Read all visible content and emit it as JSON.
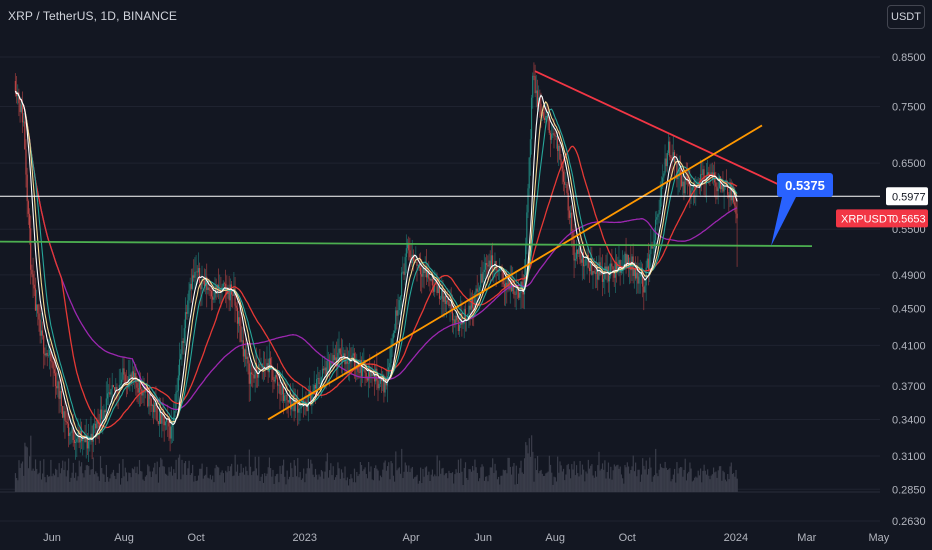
{
  "header": {
    "title": "XRP / TetherUS, 1D, BINANCE",
    "currency_button": "USDT"
  },
  "colors": {
    "background": "#131722",
    "axis_text": "#b2b5be",
    "trendline_resistance": "#f23645",
    "trendline_support": "#ff9800",
    "horizontal_support": "#4caf50",
    "horizontal_level": "#ffffff",
    "ma_slow": "#9c27b0",
    "ma_mid": "#e53935",
    "ma_fast": "#26a69a",
    "ma_fastest": "#ffffff",
    "candle_up": "#26a69a",
    "candle_down": "#ef5350",
    "volume": "#3a3d4a",
    "price_badge": "#f23645",
    "callout": "#2962ff"
  },
  "chart_data": {
    "type": "candlestick",
    "symbol": "XRPUSDT",
    "timeframe": "1D",
    "x_ticks": [
      "Jun",
      "Aug",
      "Oct",
      "2023",
      "Apr",
      "Jun",
      "Aug",
      "Oct",
      "2024",
      "Mar",
      "May"
    ],
    "y_ticks": [
      0.85,
      0.75,
      0.65,
      0.55,
      0.49,
      0.45,
      0.41,
      0.37,
      0.34,
      0.31,
      0.285,
      0.263
    ],
    "y_tick_labels": [
      "0.8500",
      "0.7500",
      "0.6500",
      "0.5500",
      "0.4900",
      "0.4500",
      "0.4100",
      "0.3700",
      "0.3400",
      "0.3100",
      "0.2850",
      "0.2630"
    ],
    "ylim": [
      0.263,
      0.95
    ],
    "scale": "log",
    "price_labels": {
      "level": {
        "text": "0.5977",
        "value": 0.5977
      },
      "last": {
        "symbol": "XRPUSDT",
        "text": "0.5653",
        "value": 0.5653
      }
    },
    "callout": {
      "text": "0.5375",
      "value": 0.5375
    },
    "close_path": [
      [
        "2022-05-01",
        0.8
      ],
      [
        "2022-05-08",
        0.72
      ],
      [
        "2022-05-15",
        0.48
      ],
      [
        "2022-05-22",
        0.42
      ],
      [
        "2022-06-01",
        0.39
      ],
      [
        "2022-06-15",
        0.33
      ],
      [
        "2022-07-01",
        0.32
      ],
      [
        "2022-07-15",
        0.35
      ],
      [
        "2022-08-01",
        0.38
      ],
      [
        "2022-08-15",
        0.37
      ],
      [
        "2022-09-01",
        0.34
      ],
      [
        "2022-09-10",
        0.33
      ],
      [
        "2022-09-20",
        0.42
      ],
      [
        "2022-09-25",
        0.48
      ],
      [
        "2022-10-01",
        0.49
      ],
      [
        "2022-10-15",
        0.47
      ],
      [
        "2022-11-01",
        0.47
      ],
      [
        "2022-11-08",
        0.42
      ],
      [
        "2022-11-15",
        0.38
      ],
      [
        "2022-12-01",
        0.39
      ],
      [
        "2022-12-15",
        0.36
      ],
      [
        "2023-01-01",
        0.35
      ],
      [
        "2023-01-15",
        0.38
      ],
      [
        "2023-02-01",
        0.4
      ],
      [
        "2023-02-15",
        0.39
      ],
      [
        "2023-03-01",
        0.38
      ],
      [
        "2023-03-10",
        0.37
      ],
      [
        "2023-03-20",
        0.45
      ],
      [
        "2023-03-28",
        0.52
      ],
      [
        "2023-04-10",
        0.5
      ],
      [
        "2023-04-25",
        0.47
      ],
      [
        "2023-05-10",
        0.43
      ],
      [
        "2023-05-25",
        0.46
      ],
      [
        "2023-06-05",
        0.51
      ],
      [
        "2023-06-20",
        0.48
      ],
      [
        "2023-07-05",
        0.47
      ],
      [
        "2023-07-13",
        0.8
      ],
      [
        "2023-07-20",
        0.74
      ],
      [
        "2023-08-01",
        0.69
      ],
      [
        "2023-08-10",
        0.62
      ],
      [
        "2023-08-17",
        0.52
      ],
      [
        "2023-09-01",
        0.5
      ],
      [
        "2023-09-15",
        0.49
      ],
      [
        "2023-10-01",
        0.51
      ],
      [
        "2023-10-15",
        0.48
      ],
      [
        "2023-10-25",
        0.55
      ],
      [
        "2023-11-05",
        0.68
      ],
      [
        "2023-11-15",
        0.62
      ],
      [
        "2023-11-25",
        0.61
      ],
      [
        "2023-12-05",
        0.63
      ],
      [
        "2023-12-15",
        0.62
      ],
      [
        "2023-12-27",
        0.61
      ],
      [
        "2024-01-02",
        0.5653
      ]
    ],
    "drawings": [
      {
        "name": "resistance",
        "from": [
          "2023-07-15",
          0.82
        ],
        "to": [
          "2024-02-25",
          0.6
        ]
      },
      {
        "name": "support",
        "from": [
          "2022-12-01",
          0.34
        ],
        "to": [
          "2024-03-15",
          0.715
        ]
      },
      {
        "name": "horizontal-support",
        "from": [
          "2022-04-25",
          0.533
        ],
        "to": [
          "2024-03-15",
          0.527
        ]
      },
      {
        "name": "horizontal-level",
        "value": 0.5977
      }
    ]
  }
}
